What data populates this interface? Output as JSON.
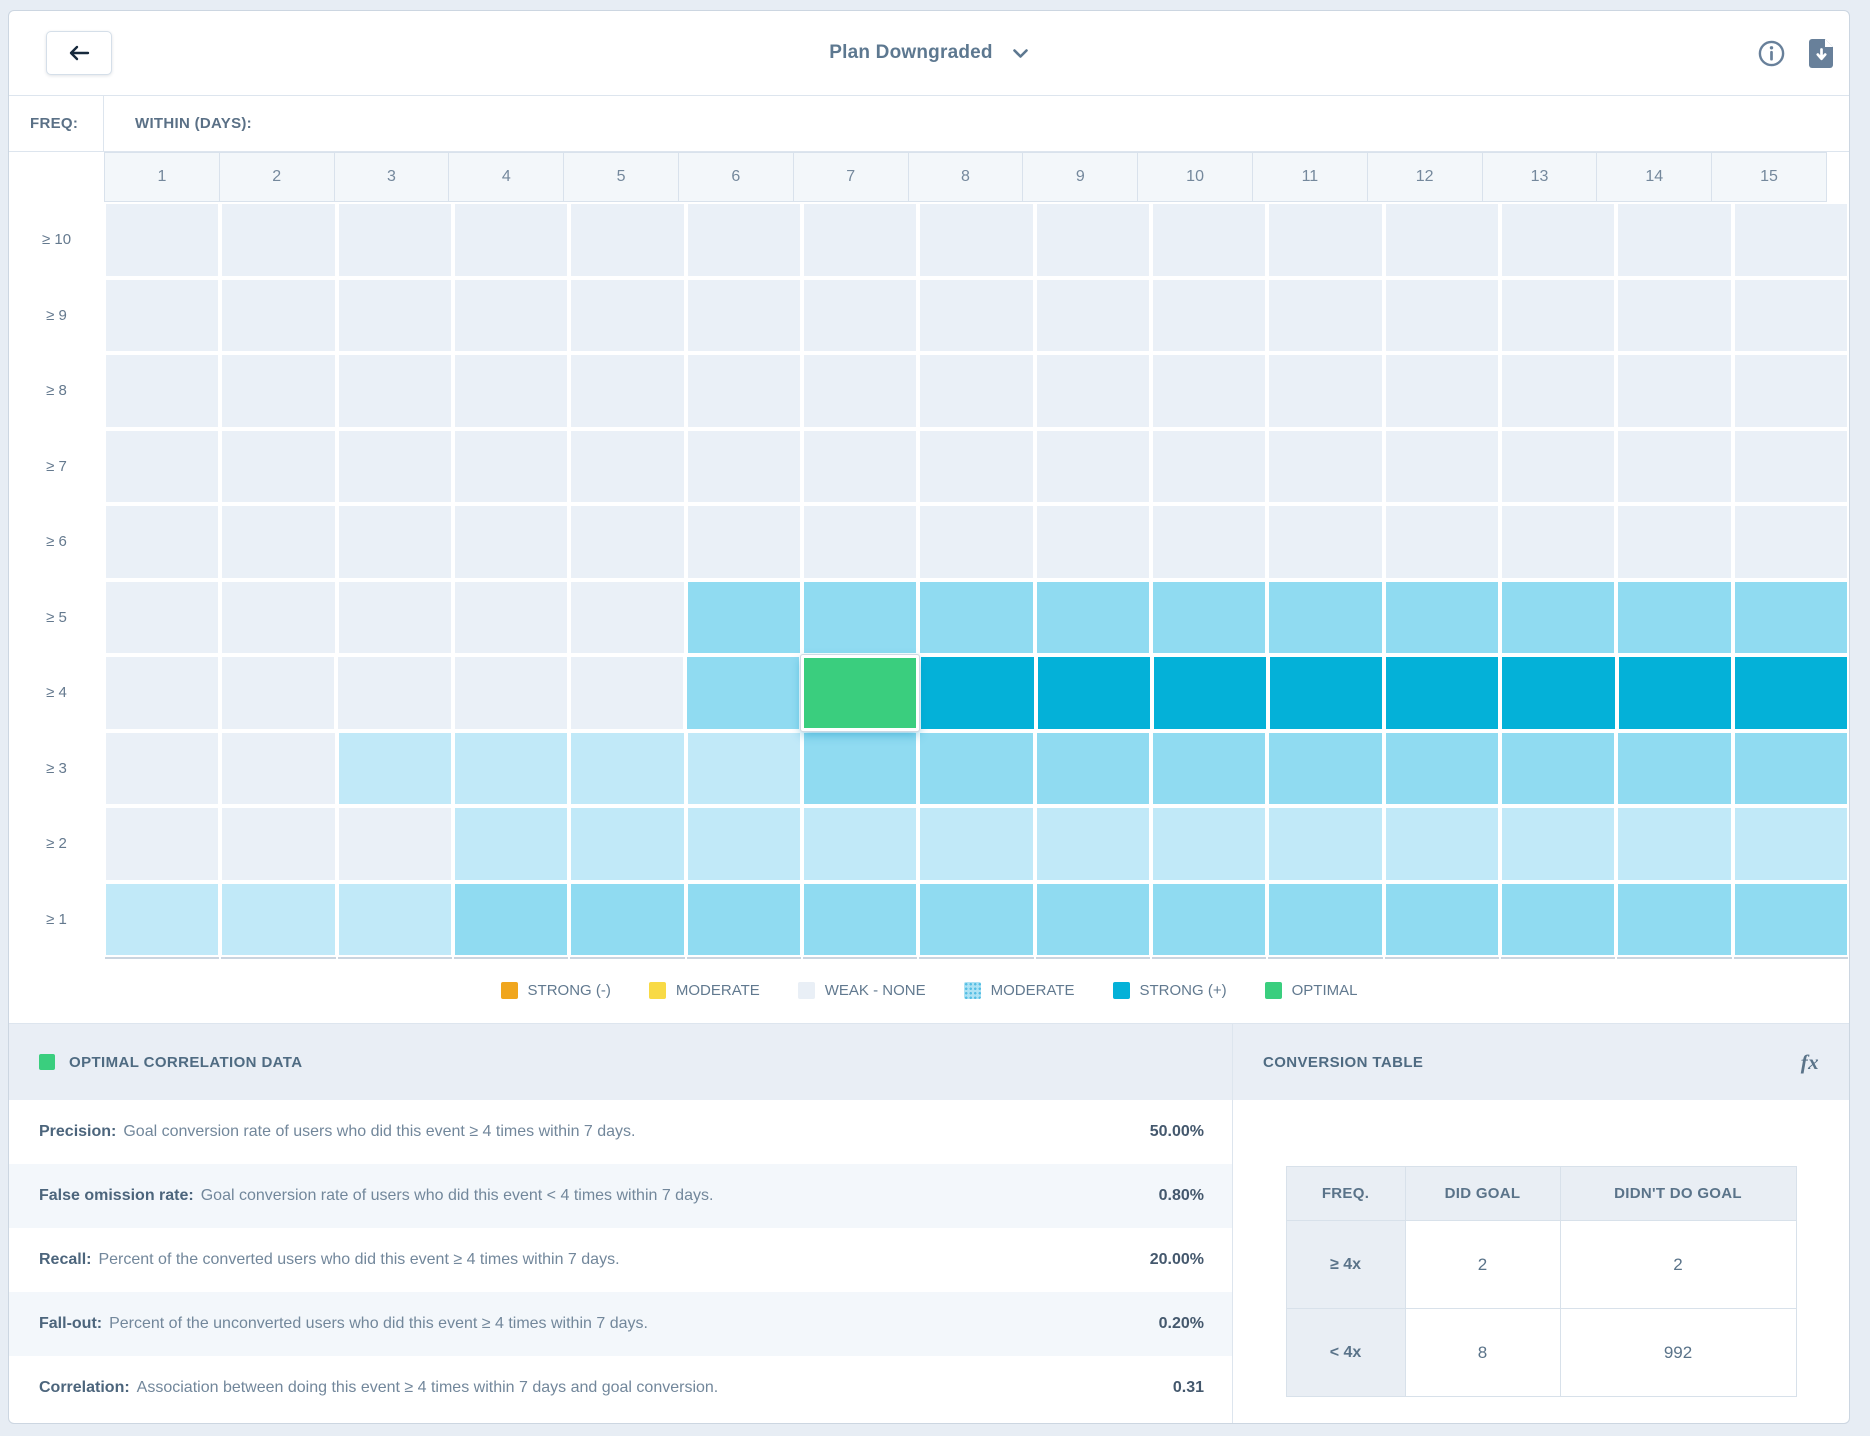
{
  "header": {
    "title": "Plan Downgraded"
  },
  "icons": {
    "back": "arrow-left",
    "title_caret": "chevron-down",
    "info": "info-circle",
    "download": "file-download",
    "fx": "formula"
  },
  "axis": {
    "freq_label": "FREQ:",
    "within_label": "WITHIN (DAYS):",
    "columns": [
      "1",
      "2",
      "3",
      "4",
      "5",
      "6",
      "7",
      "8",
      "9",
      "10",
      "11",
      "12",
      "13",
      "14",
      "15"
    ],
    "rows": [
      "≥ 10",
      "≥ 9",
      "≥ 8",
      "≥ 7",
      "≥ 6",
      "≥ 5",
      "≥ 4",
      "≥ 3",
      "≥ 2",
      "≥ 1"
    ]
  },
  "heatmap": {
    "palette": {
      "w": "#eaf0f7",
      "l": "#c1e9f8",
      "m": "#90dbf1",
      "s": "#04b1d8",
      "o": "#3ace7e"
    },
    "levels": {
      "w": "weak-none",
      "l": "weak-moderate",
      "m": "moderate-positive",
      "s": "strong-positive",
      "o": "optimal"
    },
    "cells": [
      [
        "w",
        "w",
        "w",
        "w",
        "w",
        "w",
        "w",
        "w",
        "w",
        "w",
        "w",
        "w",
        "w",
        "w",
        "w"
      ],
      [
        "w",
        "w",
        "w",
        "w",
        "w",
        "w",
        "w",
        "w",
        "w",
        "w",
        "w",
        "w",
        "w",
        "w",
        "w"
      ],
      [
        "w",
        "w",
        "w",
        "w",
        "w",
        "w",
        "w",
        "w",
        "w",
        "w",
        "w",
        "w",
        "w",
        "w",
        "w"
      ],
      [
        "w",
        "w",
        "w",
        "w",
        "w",
        "w",
        "w",
        "w",
        "w",
        "w",
        "w",
        "w",
        "w",
        "w",
        "w"
      ],
      [
        "w",
        "w",
        "w",
        "w",
        "w",
        "w",
        "w",
        "w",
        "w",
        "w",
        "w",
        "w",
        "w",
        "w",
        "w"
      ],
      [
        "w",
        "w",
        "w",
        "w",
        "w",
        "m",
        "m",
        "m",
        "m",
        "m",
        "m",
        "m",
        "m",
        "m",
        "m"
      ],
      [
        "w",
        "w",
        "w",
        "w",
        "w",
        "m",
        "o",
        "s",
        "s",
        "s",
        "s",
        "s",
        "s",
        "s",
        "s"
      ],
      [
        "w",
        "w",
        "l",
        "l",
        "l",
        "l",
        "m",
        "m",
        "m",
        "m",
        "m",
        "m",
        "m",
        "m",
        "m"
      ],
      [
        "w",
        "w",
        "w",
        "l",
        "l",
        "l",
        "l",
        "l",
        "l",
        "l",
        "l",
        "l",
        "l",
        "l",
        "l"
      ],
      [
        "l",
        "l",
        "l",
        "m",
        "m",
        "m",
        "m",
        "m",
        "m",
        "m",
        "m",
        "m",
        "m",
        "m",
        "m"
      ]
    ],
    "selected_cell": {
      "row": "≥ 4",
      "column": "7"
    }
  },
  "legend": {
    "items": [
      {
        "label": "STRONG (-)",
        "color": "#f0a61e",
        "style": "solid"
      },
      {
        "label": "MODERATE",
        "color": "#f8da45",
        "style": "solid"
      },
      {
        "label": "WEAK - NONE",
        "color": "#e9eff6",
        "style": "solid"
      },
      {
        "label": "MODERATE",
        "color": "#ade2f4",
        "style": "dotted"
      },
      {
        "label": "STRONG (+)",
        "color": "#04b1d8",
        "style": "solid"
      },
      {
        "label": "OPTIMAL",
        "color": "#3ace7e",
        "style": "solid"
      }
    ]
  },
  "optimal_panel": {
    "title": "OPTIMAL CORRELATION DATA",
    "swatch_color": "#3ace7e",
    "stats": [
      {
        "label": "Precision:",
        "desc": "Goal conversion rate of users who did this event ≥ 4 times within 7 days.",
        "value": "50.00%"
      },
      {
        "label": "False omission rate:",
        "desc": "Goal conversion rate of users who did this event < 4 times within 7 days.",
        "value": "0.80%"
      },
      {
        "label": "Recall:",
        "desc": "Percent of the converted users who did this event ≥ 4 times within 7 days.",
        "value": "20.00%"
      },
      {
        "label": "Fall-out:",
        "desc": "Percent of the unconverted users who did this event ≥ 4 times within 7 days.",
        "value": "0.20%"
      },
      {
        "label": "Correlation:",
        "desc": "Association between doing this event ≥ 4 times within 7 days and goal conversion.",
        "value": "0.31"
      }
    ]
  },
  "conversion_panel": {
    "title": "CONVERSION TABLE",
    "fx_label": "fx",
    "table": {
      "headers": [
        "FREQ.",
        "DID GOAL",
        "DIDN'T DO GOAL"
      ],
      "rows": [
        [
          "≥ 4x",
          "2",
          "2"
        ],
        [
          "< 4x",
          "8",
          "992"
        ]
      ]
    }
  }
}
